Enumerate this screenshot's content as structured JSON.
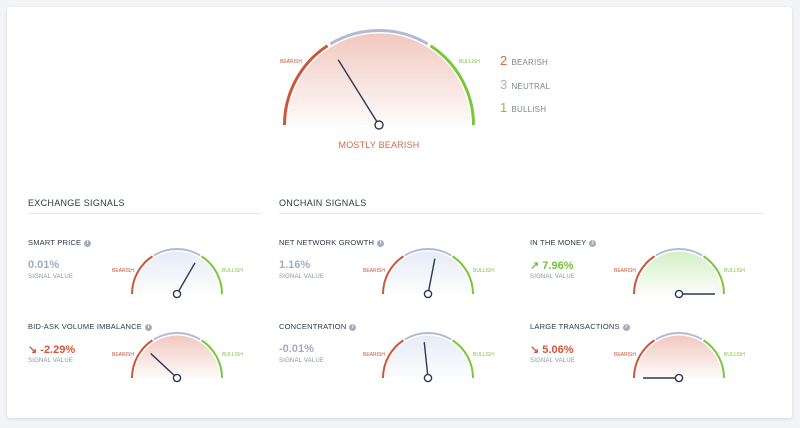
{
  "colors": {
    "bearish": "#c9583c",
    "neutral": "#b3bad4",
    "bullish": "#7cc63b",
    "needle": "#2c3852",
    "bear_fill": "#f1c8bf",
    "neutral_fill": "#e6ebf7",
    "bull_fill": "#d4efc7"
  },
  "main_gauge": {
    "label_bearish": "BEARISH",
    "label_bullish": "BULLISH",
    "status": "MOSTLY BEARISH",
    "needle_angle_deg": 58,
    "summary": [
      {
        "count": "2",
        "label": "BEARISH",
        "color": "#d4694d"
      },
      {
        "count": "3",
        "label": "NEUTRAL",
        "color": "#a9b0c8"
      },
      {
        "count": "1",
        "label": "BULLISH",
        "color": "#7cc63b"
      }
    ]
  },
  "sections": {
    "exchange": {
      "title": "EXCHANGE SIGNALS"
    },
    "onchain": {
      "title": "ONCHAIN SIGNALS"
    }
  },
  "signals": [
    {
      "id": "smart-price",
      "title": "SMART PRICE",
      "value": "0.01%",
      "arrow": "",
      "sub": "SIGNAL VALUE",
      "tone": "neutral",
      "needle_angle_deg": 120,
      "bear": "BEARISH",
      "bull": "BULLISH"
    },
    {
      "id": "bid-ask",
      "title": "BID-ASK VOLUME IMBALANCE",
      "value": "-2.29%",
      "arrow": "↘",
      "sub": "SIGNAL VALUE",
      "tone": "bearish",
      "needle_angle_deg": 43,
      "bear": "BEARISH",
      "bull": "BULLISH"
    },
    {
      "id": "net-network-growth",
      "title": "NET NETWORK GROWTH",
      "value": "1.16%",
      "arrow": "",
      "sub": "SIGNAL VALUE",
      "tone": "neutral",
      "needle_angle_deg": 101,
      "bear": "BEARISH",
      "bull": "BULLISH"
    },
    {
      "id": "concentration",
      "title": "CONCENTRATION",
      "value": "-0.01%",
      "arrow": "",
      "sub": "SIGNAL VALUE",
      "tone": "neutral",
      "needle_angle_deg": 84,
      "bear": "BEARISH",
      "bull": "BULLISH"
    },
    {
      "id": "in-the-money",
      "title": "IN THE MONEY",
      "value": "7.96%",
      "arrow": "↗",
      "sub": "SIGNAL VALUE",
      "tone": "bullish",
      "needle_angle_deg": 180,
      "bear": "BEARISH",
      "bull": "BULLISH"
    },
    {
      "id": "large-transactions",
      "title": "LARGE TRANSACTIONS",
      "value": "5.06%",
      "arrow": "↘",
      "sub": "SIGNAL VALUE",
      "tone": "bearish",
      "needle_angle_deg": 0,
      "bear": "BEARISH",
      "bull": "BULLISH"
    }
  ]
}
